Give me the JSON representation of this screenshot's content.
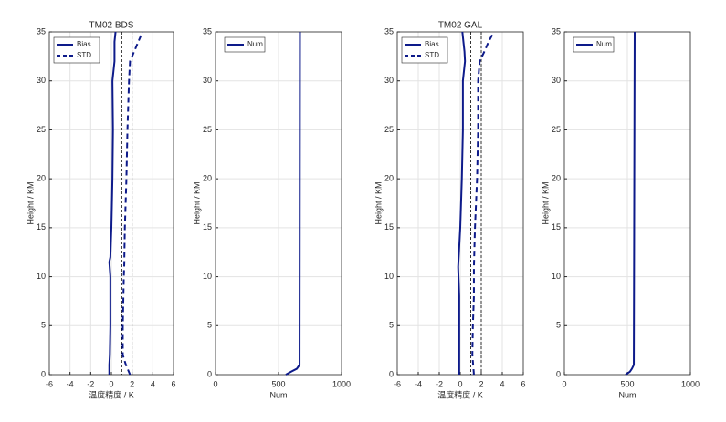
{
  "chart_data": [
    {
      "type": "line",
      "title": "TM02 BDS",
      "xlabel": "温度精度 / K",
      "ylabel": "Height / KM",
      "xlim": [
        -6,
        6
      ],
      "xticks": [
        -6,
        -4,
        -2,
        0,
        2,
        4,
        6
      ],
      "ylim": [
        0,
        35
      ],
      "yticks": [
        0,
        5,
        10,
        15,
        20,
        25,
        30,
        35
      ],
      "grid": true,
      "legend": "upper left",
      "ref_lines": [
        1,
        2
      ],
      "ref_color": "#000000",
      "y": [
        0,
        1,
        2,
        5,
        10,
        11.5,
        12,
        15,
        20,
        25,
        30,
        31,
        32,
        33,
        34,
        35
      ],
      "series": [
        {
          "name": "Bias",
          "color": "#0d1a8a",
          "style": "solid",
          "values": [
            -0.2,
            -0.2,
            -0.15,
            -0.1,
            -0.1,
            -0.2,
            -0.1,
            0,
            0.1,
            0.15,
            0.1,
            0.2,
            0.3,
            0.3,
            0.3,
            0.4
          ]
        },
        {
          "name": "STD",
          "color": "#0d1a8a",
          "style": "dashed",
          "values": [
            1.8,
            1.4,
            1.1,
            1.1,
            1.2,
            1.25,
            1.25,
            1.3,
            1.45,
            1.55,
            1.7,
            1.75,
            1.8,
            2.2,
            2.6,
            3.0
          ]
        }
      ]
    },
    {
      "type": "line",
      "xlabel": "Num",
      "ylabel": "Height / KM",
      "xlim": [
        0,
        1000
      ],
      "xticks": [
        0,
        500,
        1000
      ],
      "ylim": [
        0,
        35
      ],
      "yticks": [
        0,
        5,
        10,
        15,
        20,
        25,
        30,
        35
      ],
      "grid": true,
      "legend": "upper left",
      "y": [
        0,
        0.3,
        0.6,
        1,
        35
      ],
      "series": [
        {
          "name": "Num",
          "color": "#0d1a8a",
          "style": "solid",
          "values": [
            558,
            600,
            645,
            667,
            670
          ]
        }
      ]
    },
    {
      "type": "line",
      "title": "TM02 GAL",
      "xlabel": "温度精度 / K",
      "ylabel": "Height / KM",
      "xlim": [
        -6,
        6
      ],
      "xticks": [
        -6,
        -4,
        -2,
        0,
        2,
        4,
        6
      ],
      "ylim": [
        0,
        35
      ],
      "yticks": [
        0,
        5,
        10,
        15,
        20,
        25,
        30,
        35
      ],
      "grid": true,
      "legend": "upper left",
      "ref_lines": [
        1,
        2
      ],
      "ref_color": "#000000",
      "y": [
        0,
        2,
        5,
        8,
        11,
        15,
        20,
        25,
        30,
        32,
        33,
        34,
        35
      ],
      "series": [
        {
          "name": "Bias",
          "color": "#0d1a8a",
          "style": "solid",
          "values": [
            -0.1,
            -0.1,
            -0.1,
            -0.1,
            -0.2,
            0,
            0.15,
            0.25,
            0.25,
            0.45,
            0.4,
            0.3,
            0.2
          ]
        },
        {
          "name": "STD",
          "color": "#0d1a8a",
          "style": "dashed",
          "values": [
            1.3,
            1.15,
            1.2,
            1.3,
            1.3,
            1.4,
            1.6,
            1.7,
            1.7,
            1.85,
            2.3,
            2.7,
            3.2
          ]
        }
      ]
    },
    {
      "type": "line",
      "xlabel": "Num",
      "ylabel": "Height / KM",
      "xlim": [
        0,
        1000
      ],
      "xticks": [
        0,
        500,
        1000
      ],
      "ylim": [
        0,
        35
      ],
      "yticks": [
        0,
        5,
        10,
        15,
        20,
        25,
        30,
        35
      ],
      "grid": true,
      "legend": "upper left",
      "y": [
        0,
        0.3,
        0.6,
        1,
        35
      ],
      "series": [
        {
          "name": "Num",
          "color": "#0d1a8a",
          "style": "solid",
          "values": [
            486,
            520,
            536,
            551,
            558
          ]
        }
      ]
    }
  ]
}
